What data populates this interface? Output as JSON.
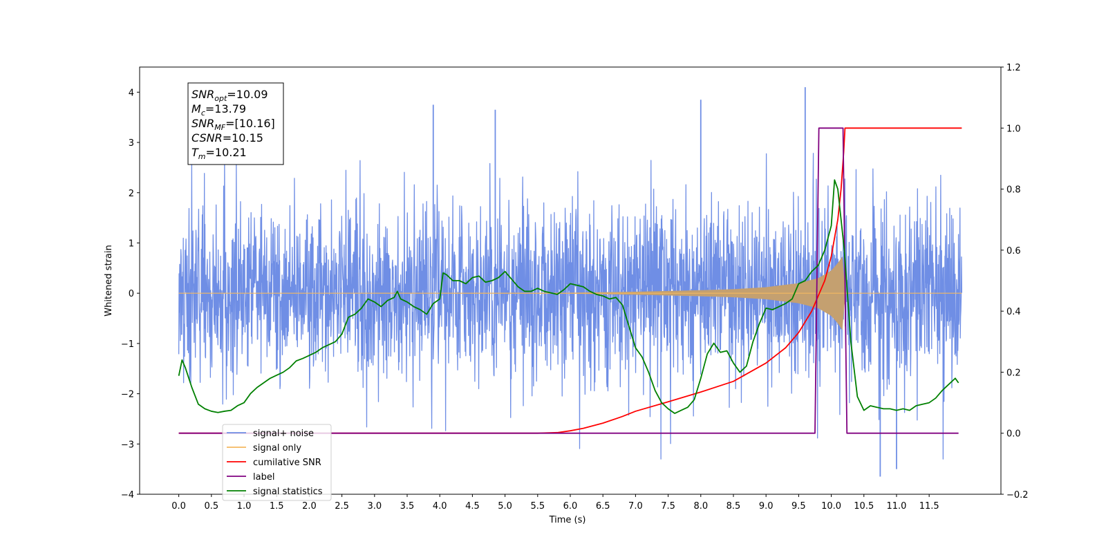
{
  "chart_data": {
    "type": "line",
    "xlabel": "Time (s)",
    "ylabel_left": "Whitened strain",
    "ylabel_right": "",
    "xlim": [
      -0.6,
      12.6
    ],
    "ylim_left": [
      -4,
      4.5
    ],
    "ylim_right": [
      -0.2,
      1.2
    ],
    "x_ticks": [
      "0.0",
      "0.5",
      "1.0",
      "1.5",
      "2.0",
      "2.5",
      "3.0",
      "3.5",
      "4.0",
      "4.5",
      "5.0",
      "5.5",
      "6.0",
      "6.5",
      "7.0",
      "7.5",
      "8.0",
      "8.5",
      "9.0",
      "9.5",
      "10.0",
      "10.5",
      "11.0",
      "11.5"
    ],
    "y_ticks_left": [
      "4",
      "3",
      "2",
      "1",
      "0",
      "−1",
      "−2",
      "−3",
      "−4"
    ],
    "y_ticks_right": [
      "1.2",
      "1.0",
      "0.8",
      "0.6",
      "0.4",
      "0.2",
      "0.0",
      "−0.2"
    ],
    "annotation": [
      {
        "sym": "SNR",
        "sub": "opt",
        "val": "=10.09"
      },
      {
        "sym": "M",
        "sub": "c",
        "val": "=13.79"
      },
      {
        "sym": "SNR",
        "sub": "MF",
        "val": "=[10.16]"
      },
      {
        "sym": "CSNR",
        "sub": "",
        "val": "=10.15"
      },
      {
        "sym": "T",
        "sub": "m",
        "val": "=10.21"
      }
    ],
    "legend_position": "lower-left",
    "series": [
      {
        "name": "signal+ noise",
        "axis": "left",
        "color": "#6f8ee5",
        "noise_sigma": 1.0,
        "x_range": [
          0,
          12
        ],
        "peaks": [
          {
            "x": 9.6,
            "y": 4.1
          },
          {
            "x": 4.85,
            "y": 3.65
          },
          {
            "x": 8.0,
            "y": 3.85
          },
          {
            "x": 3.9,
            "y": 3.75
          },
          {
            "x": 10.75,
            "y": -3.65
          },
          {
            "x": 11.0,
            "y": -3.5
          }
        ]
      },
      {
        "name": "signal only",
        "axis": "left",
        "color": "#f4b860",
        "fill_color": "#c4a070",
        "envelope": [
          {
            "x": 0,
            "y": 0.0
          },
          {
            "x": 6.0,
            "y": 0.01
          },
          {
            "x": 7.0,
            "y": 0.03
          },
          {
            "x": 8.0,
            "y": 0.06
          },
          {
            "x": 8.5,
            "y": 0.08
          },
          {
            "x": 9.0,
            "y": 0.12
          },
          {
            "x": 9.5,
            "y": 0.2
          },
          {
            "x": 9.8,
            "y": 0.3
          },
          {
            "x": 10.0,
            "y": 0.45
          },
          {
            "x": 10.1,
            "y": 0.6
          },
          {
            "x": 10.18,
            "y": 0.75
          },
          {
            "x": 10.21,
            "y": 0.0
          },
          {
            "x": 12.0,
            "y": 0.0
          }
        ]
      },
      {
        "name": "cumilative SNR",
        "axis": "right",
        "color": "#ff0000",
        "points": [
          {
            "x": 0,
            "y": 0.0
          },
          {
            "x": 5.5,
            "y": 0.0
          },
          {
            "x": 5.8,
            "y": 0.002
          },
          {
            "x": 6.0,
            "y": 0.008
          },
          {
            "x": 6.2,
            "y": 0.016
          },
          {
            "x": 6.5,
            "y": 0.033
          },
          {
            "x": 6.8,
            "y": 0.055
          },
          {
            "x": 7.0,
            "y": 0.072
          },
          {
            "x": 7.5,
            "y": 0.103
          },
          {
            "x": 8.0,
            "y": 0.135
          },
          {
            "x": 8.5,
            "y": 0.17
          },
          {
            "x": 9.0,
            "y": 0.23
          },
          {
            "x": 9.3,
            "y": 0.28
          },
          {
            "x": 9.5,
            "y": 0.33
          },
          {
            "x": 9.7,
            "y": 0.4
          },
          {
            "x": 9.9,
            "y": 0.5
          },
          {
            "x": 10.0,
            "y": 0.58
          },
          {
            "x": 10.1,
            "y": 0.7
          },
          {
            "x": 10.15,
            "y": 0.8
          },
          {
            "x": 10.19,
            "y": 0.92
          },
          {
            "x": 10.21,
            "y": 1.0
          },
          {
            "x": 12.0,
            "y": 1.0
          }
        ]
      },
      {
        "name": "label",
        "axis": "right",
        "color": "#800080",
        "points": [
          {
            "x": 0,
            "y": 0.0
          },
          {
            "x": 9.75,
            "y": 0.0
          },
          {
            "x": 9.81,
            "y": 1.0
          },
          {
            "x": 10.18,
            "y": 1.0
          },
          {
            "x": 10.24,
            "y": 0.0
          },
          {
            "x": 11.95,
            "y": 0.0
          }
        ]
      },
      {
        "name": "signal statistics",
        "axis": "right",
        "color": "#008000",
        "points": [
          {
            "x": 0.0,
            "y": 0.188
          },
          {
            "x": 0.05,
            "y": 0.24
          },
          {
            "x": 0.1,
            "y": 0.215
          },
          {
            "x": 0.2,
            "y": 0.15
          },
          {
            "x": 0.3,
            "y": 0.095
          },
          {
            "x": 0.4,
            "y": 0.08
          },
          {
            "x": 0.5,
            "y": 0.072
          },
          {
            "x": 0.6,
            "y": 0.068
          },
          {
            "x": 0.7,
            "y": 0.072
          },
          {
            "x": 0.8,
            "y": 0.075
          },
          {
            "x": 0.9,
            "y": 0.09
          },
          {
            "x": 1.0,
            "y": 0.1
          },
          {
            "x": 1.1,
            "y": 0.13
          },
          {
            "x": 1.2,
            "y": 0.15
          },
          {
            "x": 1.3,
            "y": 0.165
          },
          {
            "x": 1.4,
            "y": 0.18
          },
          {
            "x": 1.5,
            "y": 0.19
          },
          {
            "x": 1.6,
            "y": 0.2
          },
          {
            "x": 1.7,
            "y": 0.215
          },
          {
            "x": 1.8,
            "y": 0.237
          },
          {
            "x": 1.9,
            "y": 0.245
          },
          {
            "x": 2.0,
            "y": 0.255
          },
          {
            "x": 2.1,
            "y": 0.265
          },
          {
            "x": 2.2,
            "y": 0.28
          },
          {
            "x": 2.3,
            "y": 0.29
          },
          {
            "x": 2.4,
            "y": 0.3
          },
          {
            "x": 2.5,
            "y": 0.325
          },
          {
            "x": 2.6,
            "y": 0.38
          },
          {
            "x": 2.7,
            "y": 0.39
          },
          {
            "x": 2.8,
            "y": 0.41
          },
          {
            "x": 2.9,
            "y": 0.44
          },
          {
            "x": 3.0,
            "y": 0.43
          },
          {
            "x": 3.1,
            "y": 0.415
          },
          {
            "x": 3.2,
            "y": 0.435
          },
          {
            "x": 3.3,
            "y": 0.445
          },
          {
            "x": 3.35,
            "y": 0.465
          },
          {
            "x": 3.4,
            "y": 0.44
          },
          {
            "x": 3.5,
            "y": 0.43
          },
          {
            "x": 3.6,
            "y": 0.415
          },
          {
            "x": 3.7,
            "y": 0.405
          },
          {
            "x": 3.8,
            "y": 0.39
          },
          {
            "x": 3.9,
            "y": 0.425
          },
          {
            "x": 4.0,
            "y": 0.44
          },
          {
            "x": 4.05,
            "y": 0.525
          },
          {
            "x": 4.1,
            "y": 0.52
          },
          {
            "x": 4.2,
            "y": 0.5
          },
          {
            "x": 4.3,
            "y": 0.5
          },
          {
            "x": 4.4,
            "y": 0.49
          },
          {
            "x": 4.5,
            "y": 0.51
          },
          {
            "x": 4.6,
            "y": 0.515
          },
          {
            "x": 4.7,
            "y": 0.495
          },
          {
            "x": 4.8,
            "y": 0.5
          },
          {
            "x": 4.9,
            "y": 0.51
          },
          {
            "x": 5.0,
            "y": 0.53
          },
          {
            "x": 5.1,
            "y": 0.505
          },
          {
            "x": 5.2,
            "y": 0.48
          },
          {
            "x": 5.3,
            "y": 0.465
          },
          {
            "x": 5.4,
            "y": 0.465
          },
          {
            "x": 5.5,
            "y": 0.475
          },
          {
            "x": 5.6,
            "y": 0.465
          },
          {
            "x": 5.7,
            "y": 0.46
          },
          {
            "x": 5.8,
            "y": 0.455
          },
          {
            "x": 5.9,
            "y": 0.47
          },
          {
            "x": 6.0,
            "y": 0.49
          },
          {
            "x": 6.1,
            "y": 0.485
          },
          {
            "x": 6.2,
            "y": 0.48
          },
          {
            "x": 6.3,
            "y": 0.465
          },
          {
            "x": 6.4,
            "y": 0.455
          },
          {
            "x": 6.5,
            "y": 0.45
          },
          {
            "x": 6.6,
            "y": 0.44
          },
          {
            "x": 6.7,
            "y": 0.445
          },
          {
            "x": 6.8,
            "y": 0.42
          },
          {
            "x": 6.9,
            "y": 0.35
          },
          {
            "x": 7.0,
            "y": 0.28
          },
          {
            "x": 7.1,
            "y": 0.25
          },
          {
            "x": 7.2,
            "y": 0.2
          },
          {
            "x": 7.3,
            "y": 0.14
          },
          {
            "x": 7.4,
            "y": 0.1
          },
          {
            "x": 7.5,
            "y": 0.08
          },
          {
            "x": 7.6,
            "y": 0.065
          },
          {
            "x": 7.7,
            "y": 0.075
          },
          {
            "x": 7.8,
            "y": 0.085
          },
          {
            "x": 7.9,
            "y": 0.11
          },
          {
            "x": 8.0,
            "y": 0.18
          },
          {
            "x": 8.1,
            "y": 0.26
          },
          {
            "x": 8.2,
            "y": 0.295
          },
          {
            "x": 8.3,
            "y": 0.265
          },
          {
            "x": 8.4,
            "y": 0.27
          },
          {
            "x": 8.5,
            "y": 0.23
          },
          {
            "x": 8.6,
            "y": 0.2
          },
          {
            "x": 8.7,
            "y": 0.22
          },
          {
            "x": 8.8,
            "y": 0.3
          },
          {
            "x": 8.9,
            "y": 0.36
          },
          {
            "x": 9.0,
            "y": 0.41
          },
          {
            "x": 9.1,
            "y": 0.405
          },
          {
            "x": 9.2,
            "y": 0.415
          },
          {
            "x": 9.3,
            "y": 0.425
          },
          {
            "x": 9.4,
            "y": 0.44
          },
          {
            "x": 9.5,
            "y": 0.49
          },
          {
            "x": 9.6,
            "y": 0.5
          },
          {
            "x": 9.7,
            "y": 0.53
          },
          {
            "x": 9.8,
            "y": 0.55
          },
          {
            "x": 9.9,
            "y": 0.6
          },
          {
            "x": 10.0,
            "y": 0.68
          },
          {
            "x": 10.05,
            "y": 0.83
          },
          {
            "x": 10.1,
            "y": 0.8
          },
          {
            "x": 10.15,
            "y": 0.7
          },
          {
            "x": 10.2,
            "y": 0.6
          },
          {
            "x": 10.3,
            "y": 0.3
          },
          {
            "x": 10.4,
            "y": 0.12
          },
          {
            "x": 10.5,
            "y": 0.075
          },
          {
            "x": 10.6,
            "y": 0.09
          },
          {
            "x": 10.7,
            "y": 0.085
          },
          {
            "x": 10.8,
            "y": 0.08
          },
          {
            "x": 10.9,
            "y": 0.08
          },
          {
            "x": 11.0,
            "y": 0.075
          },
          {
            "x": 11.1,
            "y": 0.08
          },
          {
            "x": 11.2,
            "y": 0.075
          },
          {
            "x": 11.3,
            "y": 0.09
          },
          {
            "x": 11.4,
            "y": 0.095
          },
          {
            "x": 11.5,
            "y": 0.1
          },
          {
            "x": 11.6,
            "y": 0.115
          },
          {
            "x": 11.7,
            "y": 0.14
          },
          {
            "x": 11.8,
            "y": 0.16
          },
          {
            "x": 11.9,
            "y": 0.18
          },
          {
            "x": 11.95,
            "y": 0.165
          }
        ]
      }
    ],
    "legend_entries": [
      {
        "label": "signal+ noise",
        "color": "#6f8ee5"
      },
      {
        "label": "signal only",
        "color": "#f4b860"
      },
      {
        "label": "cumilative SNR",
        "color": "#ff0000"
      },
      {
        "label": "label",
        "color": "#800080"
      },
      {
        "label": "signal statistics",
        "color": "#008000"
      }
    ]
  }
}
